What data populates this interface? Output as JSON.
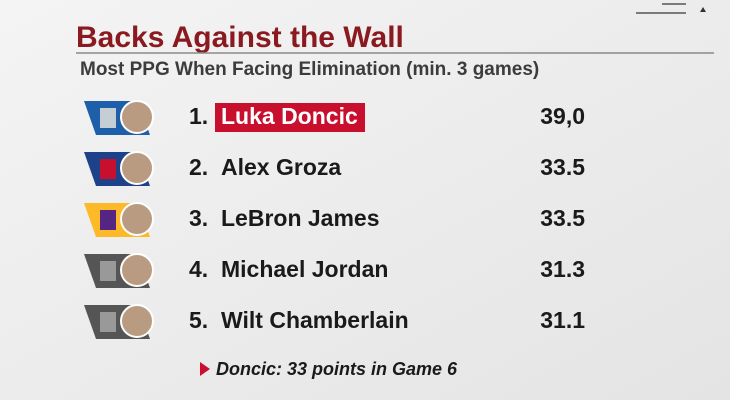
{
  "header": {
    "title": "Backs Against the Wall",
    "subtitle": "Most PPG When Facing Elimination (min. 3 games)"
  },
  "rows": [
    {
      "rank": "1.",
      "name": "Luka Doncic",
      "value": "39,0"
    },
    {
      "rank": "2.",
      "name": "Alex Groza",
      "value": "33.5"
    },
    {
      "rank": "3.",
      "name": "LeBron James",
      "value": "33.5"
    },
    {
      "rank": "4.",
      "name": "Michael Jordan",
      "value": "31.3"
    },
    {
      "rank": "5.",
      "name": "Wilt Chamberlain",
      "value": "31.1"
    }
  ],
  "footnote": "Doncic: 33 points in Game 6"
}
